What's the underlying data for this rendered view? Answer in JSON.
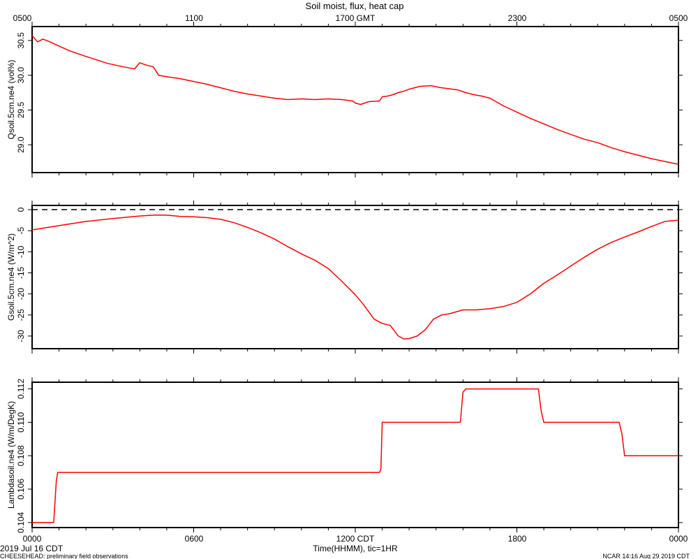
{
  "title": "Soil moist, flux, heat cap",
  "top_axis": {
    "labels": [
      "0500",
      "1100",
      "1700 GMT",
      "2300",
      "0500"
    ]
  },
  "bottom_axis": {
    "labels": [
      "0000",
      "0600",
      "1200 CDT",
      "1800",
      "0000"
    ],
    "xlabel": "Time(HHMM), tic=1HR"
  },
  "footer": {
    "date": "2019 Jul 16 CDT",
    "project": "CHEESEHEAD: preliminary field observations",
    "credit": "NCAR 14:16 Aug 29 2019 CDT"
  },
  "colors": {
    "series": "#ff0000",
    "axes": "#000000",
    "zero_line": "#000000"
  },
  "chart_data": [
    {
      "type": "line",
      "ylabel": "Qsoil.5cm.ne4 (vol%)",
      "xlim": [
        0,
        24
      ],
      "ylim": [
        28.6,
        30.7
      ],
      "yticks": [
        29.0,
        29.5,
        30.0,
        30.5
      ],
      "ytick_labels": [
        "29.0",
        "29.5",
        "30.0",
        "30.5"
      ],
      "series": [
        {
          "x": [
            0,
            0.2,
            0.4,
            0.6,
            1.0,
            1.4,
            2.0,
            2.8,
            3.4,
            3.8,
            4.0,
            4.2,
            4.5,
            4.7,
            5.0,
            5.5,
            6.0,
            6.5,
            7.0,
            7.5,
            8.0,
            8.5,
            9.0,
            9.5,
            10.0,
            10.5,
            11.0,
            11.5,
            11.9,
            12.0,
            12.2,
            12.5,
            12.9,
            13.0,
            13.2,
            13.4,
            13.6,
            13.8,
            14.0,
            14.2,
            14.4,
            14.8,
            15.2,
            15.6,
            15.8,
            16.1,
            16.4,
            16.7,
            17.0,
            17.5,
            18.0,
            18.5,
            19.0,
            19.5,
            20.0,
            20.5,
            21.0,
            21.5,
            22.0,
            22.5,
            23.0,
            23.5,
            24.0
          ],
          "y": [
            30.57,
            30.48,
            30.52,
            30.49,
            30.42,
            30.35,
            30.27,
            30.17,
            30.12,
            30.09,
            30.18,
            30.15,
            30.12,
            30.0,
            29.98,
            29.95,
            29.91,
            29.87,
            29.82,
            29.77,
            29.73,
            29.7,
            29.67,
            29.65,
            29.66,
            29.65,
            29.66,
            29.65,
            29.63,
            29.6,
            29.58,
            29.62,
            29.63,
            29.69,
            29.7,
            29.72,
            29.75,
            29.77,
            29.8,
            29.82,
            29.84,
            29.85,
            29.82,
            29.8,
            29.79,
            29.75,
            29.72,
            29.7,
            29.67,
            29.56,
            29.47,
            29.38,
            29.3,
            29.22,
            29.15,
            29.08,
            29.03,
            28.96,
            28.9,
            28.85,
            28.8,
            28.76,
            28.72
          ],
          "color": "#ff0000"
        }
      ]
    },
    {
      "type": "line",
      "ylabel": "Gsoil.5cm.ne4 (W/m^2)",
      "xlim": [
        0,
        24
      ],
      "ylim": [
        -33,
        1
      ],
      "yticks": [
        0,
        -5,
        -10,
        -15,
        -20,
        -25,
        -30
      ],
      "ytick_labels": [
        "0",
        "-5",
        "-10",
        "-15",
        "-20",
        "-25",
        "-30"
      ],
      "zero_line": true,
      "series": [
        {
          "x": [
            0,
            1,
            2,
            3,
            4,
            4.5,
            5,
            5.5,
            6,
            6.5,
            7,
            7.5,
            8,
            8.5,
            9,
            9.5,
            10,
            10.5,
            11,
            11.5,
            12,
            12.3,
            12.7,
            13,
            13.3,
            13.6,
            13.8,
            14.0,
            14.3,
            14.6,
            14.9,
            15.2,
            15.5,
            16,
            16.5,
            17,
            17.5,
            18,
            18.5,
            19,
            19.5,
            20,
            20.5,
            21,
            21.5,
            22,
            22.5,
            23,
            23.5,
            24
          ],
          "y": [
            -4.8,
            -3.8,
            -2.8,
            -2.1,
            -1.5,
            -1.3,
            -1.3,
            -1.6,
            -1.7,
            -1.9,
            -2.3,
            -3.1,
            -4.2,
            -5.5,
            -7.0,
            -8.8,
            -10.5,
            -12.0,
            -14.0,
            -17.0,
            -20.2,
            -22.5,
            -26.0,
            -27.0,
            -27.5,
            -30.0,
            -30.7,
            -30.6,
            -30.0,
            -28.5,
            -26.0,
            -25.0,
            -24.7,
            -23.8,
            -23.8,
            -23.5,
            -23.0,
            -22.0,
            -20.0,
            -17.5,
            -15.5,
            -13.4,
            -11.3,
            -9.4,
            -7.8,
            -6.5,
            -5.3,
            -4.0,
            -2.8,
            -2.5
          ],
          "color": "#ff0000"
        }
      ]
    },
    {
      "type": "line",
      "ylabel": "Lambdasoil.ne4 (W/m/DegK)",
      "xlim": [
        0,
        24
      ],
      "ylim": [
        0.1037,
        0.1124
      ],
      "yticks": [
        0.104,
        0.106,
        0.108,
        0.11,
        0.112
      ],
      "ytick_labels": [
        "0.104",
        "0.106",
        "0.108",
        "0.110",
        "0.112"
      ],
      "series": [
        {
          "x": [
            0,
            0.8,
            0.9,
            0.95,
            1.0,
            12.9,
            12.95,
            13.0,
            15.9,
            16.0,
            16.1,
            18.8,
            18.9,
            19.0,
            21.8,
            21.9,
            22.0,
            24.0
          ],
          "y": [
            0.104,
            0.104,
            0.1065,
            0.107,
            0.107,
            0.107,
            0.1072,
            0.11,
            0.11,
            0.1118,
            0.112,
            0.112,
            0.1107,
            0.11,
            0.11,
            0.1093,
            0.108,
            0.108
          ],
          "color": "#ff0000"
        }
      ]
    }
  ]
}
